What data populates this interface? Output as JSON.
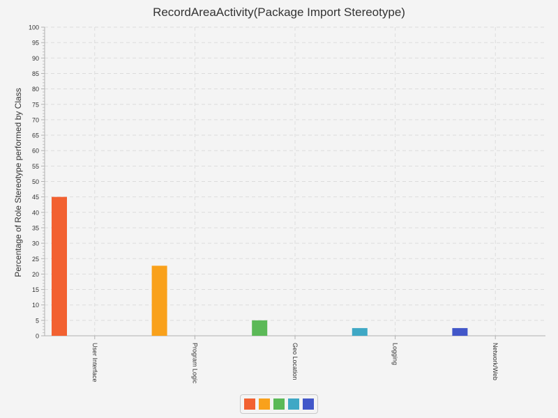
{
  "chart_data": {
    "type": "bar",
    "title": "RecordAreaActivity(Package Import Stereotype)",
    "xlabel": "",
    "ylabel": "Percentage of Role Stereotype performed by Class",
    "categories": [
      "User Interface",
      "Program Logic",
      "Geo Location",
      "Logging",
      "Network/Web"
    ],
    "values": [
      45,
      22.7,
      5,
      2.5,
      2.5
    ],
    "colors": [
      "#f26131",
      "#f9a11b",
      "#5bb957",
      "#3fa8c5",
      "#4257c9"
    ],
    "ylim": [
      0,
      100
    ],
    "ytick_step": 5,
    "grid": true,
    "legend": "bottom"
  }
}
